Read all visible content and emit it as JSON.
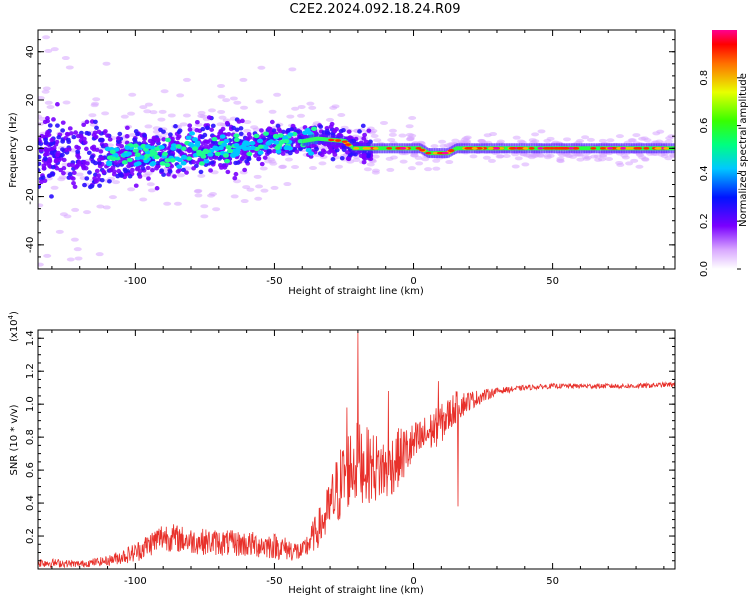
{
  "title": "C2E2.2024.092.18.24.R09",
  "colorbar": {
    "label": "Normalized spectral amplitude",
    "ticks": [
      "0.0",
      "0.2",
      "0.4",
      "0.6",
      "0.8"
    ],
    "tick_values": [
      0.0,
      0.2,
      0.4,
      0.6,
      0.8
    ],
    "range": [
      0,
      1
    ]
  },
  "chart_data": [
    {
      "type": "heatmap",
      "xlabel": "Height of straight line (km)",
      "ylabel": "Frequency (Hz)",
      "xlim": [
        -135,
        94
      ],
      "ylim": [
        -50,
        49
      ],
      "x_ticks": [
        "-100",
        "-50",
        "0",
        "50"
      ],
      "x_tick_values": [
        -100,
        -50,
        0,
        50
      ],
      "y_ticks": [
        "-40",
        "-20",
        "0",
        "20",
        "40"
      ],
      "y_tick_values": [
        -40,
        -20,
        0,
        20,
        40
      ],
      "ridge": [
        {
          "x": -135,
          "y": -2
        },
        {
          "x": -100,
          "y": -3
        },
        {
          "x": -60,
          "y": 1
        },
        {
          "x": -40,
          "y": 3
        },
        {
          "x": -35,
          "y": 4
        },
        {
          "x": -25,
          "y": 3
        },
        {
          "x": -22,
          "y": 0
        },
        {
          "x": 2,
          "y": 0
        },
        {
          "x": 5,
          "y": -2
        },
        {
          "x": 12,
          "y": -2
        },
        {
          "x": 15,
          "y": 0
        },
        {
          "x": 94,
          "y": 0
        }
      ]
    },
    {
      "type": "line",
      "xlabel": "Height of straight line (km)",
      "ylabel": "SNR (10 * v/v)",
      "y_multiplier": "(x10",
      "y_multiplier_exp": "4",
      "y_multiplier_close": ")",
      "xlim": [
        -135,
        94
      ],
      "ylim": [
        0,
        1.45
      ],
      "x_ticks": [
        "-100",
        "-50",
        "0",
        "50"
      ],
      "x_tick_values": [
        -100,
        -50,
        0,
        50
      ],
      "y_ticks": [
        "0.2",
        "0.4",
        "0.6",
        "0.8",
        "1.0",
        "1.2",
        "1.4"
      ],
      "y_tick_values": [
        0.2,
        0.4,
        0.6,
        0.8,
        1.0,
        1.2,
        1.4
      ],
      "series": [
        {
          "color": "#e8302a",
          "x": [
            -135,
            -120,
            -110,
            -100,
            -90,
            -80,
            -70,
            -60,
            -50,
            -40,
            -32,
            -28,
            -24,
            -20,
            -15,
            -10,
            -5,
            0,
            5,
            10,
            15,
            20,
            25,
            30,
            40,
            50,
            60,
            70,
            80,
            94
          ],
          "y": [
            0.04,
            0.03,
            0.05,
            0.1,
            0.2,
            0.17,
            0.16,
            0.15,
            0.14,
            0.1,
            0.3,
            0.45,
            0.6,
            0.65,
            0.62,
            0.6,
            0.68,
            0.75,
            0.82,
            0.88,
            0.98,
            1.02,
            1.05,
            1.08,
            1.1,
            1.11,
            1.11,
            1.11,
            1.11,
            1.12
          ],
          "noise": [
            0.03,
            0.02,
            0.03,
            0.06,
            0.09,
            0.08,
            0.08,
            0.08,
            0.08,
            0.06,
            0.14,
            0.22,
            0.25,
            0.25,
            0.22,
            0.2,
            0.18,
            0.14,
            0.12,
            0.12,
            0.1,
            0.06,
            0.04,
            0.02,
            0.015,
            0.015,
            0.015,
            0.015,
            0.015,
            0.015
          ],
          "spikes": [
            {
              "x": -20,
              "y": 1.44
            },
            {
              "x": -24,
              "y": 0.98
            },
            {
              "x": -9,
              "y": 1.08
            },
            {
              "x": 9,
              "y": 1.14
            },
            {
              "x": 16,
              "y": 0.38
            }
          ]
        }
      ]
    }
  ]
}
